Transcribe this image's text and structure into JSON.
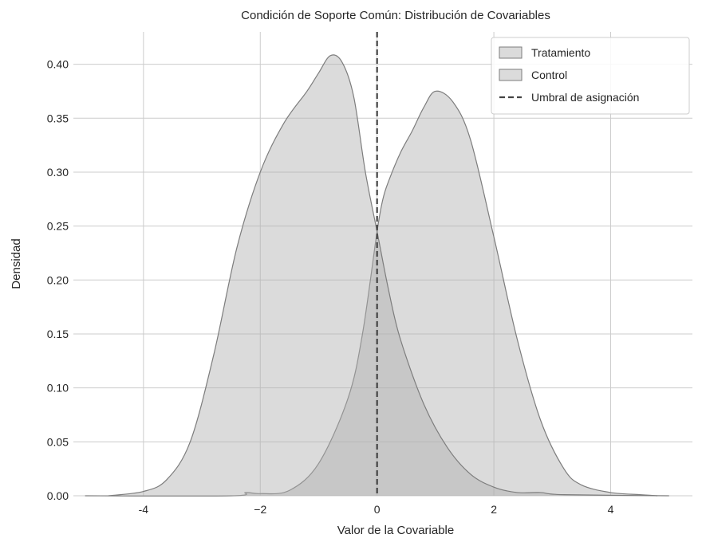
{
  "chart_data": {
    "type": "area",
    "title": "Condición de Soporte Común: Distribución de Covariables",
    "xlabel": "Valor de la Covariable",
    "ylabel": "Densidad",
    "xlim": [
      -5.2,
      5.4
    ],
    "ylim": [
      0,
      0.43
    ],
    "xticks": [
      -4,
      -2,
      0,
      2,
      4
    ],
    "xtick_labels": [
      "-4",
      "−2",
      "0",
      "2",
      "4"
    ],
    "yticks": [
      0,
      0.05,
      0.1,
      0.15,
      0.2,
      0.25,
      0.3,
      0.35,
      0.4
    ],
    "ytick_labels": [
      "0.00",
      "0.05",
      "0.10",
      "0.15",
      "0.20",
      "0.25",
      "0.30",
      "0.35",
      "0.40"
    ],
    "grid": true,
    "legend_position": "top-right",
    "threshold": {
      "name": "Umbral de asignación",
      "x": 0,
      "style": "dashed",
      "color": "#444444"
    },
    "series": [
      {
        "name": "Tratamiento",
        "color": "#b0b0b0",
        "x": [
          -5.0,
          -2.5,
          -2.25,
          -2.0,
          -1.5,
          -1.0,
          -0.5,
          -0.25,
          0.0,
          0.1,
          0.2,
          0.4,
          0.6,
          0.8,
          1.0,
          1.3,
          1.6,
          2.0,
          2.4,
          2.8,
          3.2,
          3.5,
          4.0,
          4.5,
          4.8
        ],
        "y": [
          0.0,
          0.0,
          0.003,
          0.002,
          0.005,
          0.03,
          0.09,
          0.15,
          0.245,
          0.275,
          0.292,
          0.318,
          0.338,
          0.36,
          0.375,
          0.365,
          0.33,
          0.24,
          0.145,
          0.07,
          0.025,
          0.01,
          0.003,
          0.001,
          0.0
        ]
      },
      {
        "name": "Control",
        "color": "#b0b0b0",
        "x": [
          -4.6,
          -4.0,
          -3.6,
          -3.2,
          -2.8,
          -2.4,
          -2.0,
          -1.6,
          -1.2,
          -1.0,
          -0.8,
          -0.6,
          -0.4,
          -0.2,
          0.0,
          0.2,
          0.4,
          0.8,
          1.2,
          1.6,
          2.0,
          2.4,
          2.8,
          3.2,
          5.0
        ],
        "y": [
          0.0,
          0.004,
          0.015,
          0.05,
          0.13,
          0.23,
          0.3,
          0.345,
          0.375,
          0.392,
          0.408,
          0.402,
          0.37,
          0.3,
          0.245,
          0.19,
          0.145,
          0.085,
          0.045,
          0.02,
          0.008,
          0.003,
          0.003,
          0.001,
          0.0
        ]
      }
    ]
  }
}
